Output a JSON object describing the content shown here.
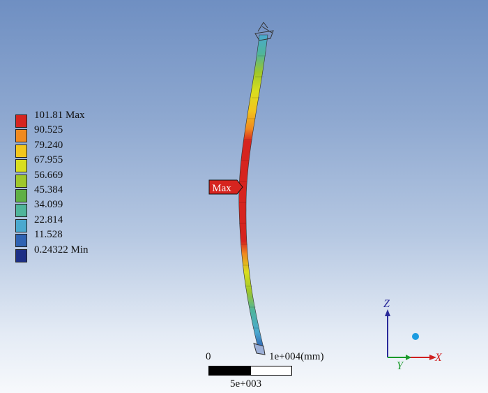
{
  "legend": {
    "entries": [
      {
        "label": "101.81 Max",
        "color": "#d6241f"
      },
      {
        "label": "90.525",
        "color": "#f08a1f"
      },
      {
        "label": "79.240",
        "color": "#f2c61c"
      },
      {
        "label": "67.955",
        "color": "#d8de1f"
      },
      {
        "label": "56.669",
        "color": "#9fc72a"
      },
      {
        "label": "45.384",
        "color": "#5fb044"
      },
      {
        "label": "34.099",
        "color": "#4fb59b"
      },
      {
        "label": "22.814",
        "color": "#4aa9cf"
      },
      {
        "label": "11.528",
        "color": "#2f63b3"
      },
      {
        "label": "0.24322 Min",
        "color": "#1d2f86"
      }
    ]
  },
  "probe": {
    "label": "Max",
    "color": "#d6241f"
  },
  "scale_bar": {
    "left_label": "0",
    "right_label": "1e+004(mm)",
    "mid_label": "5e+003"
  },
  "axes": {
    "z_label": "Z",
    "y_label": "Y",
    "x_label": "X",
    "z_color": "#2a2a9a",
    "y_color": "#1a9a2a",
    "x_color": "#d02020",
    "dot_color": "#1b9be0"
  }
}
